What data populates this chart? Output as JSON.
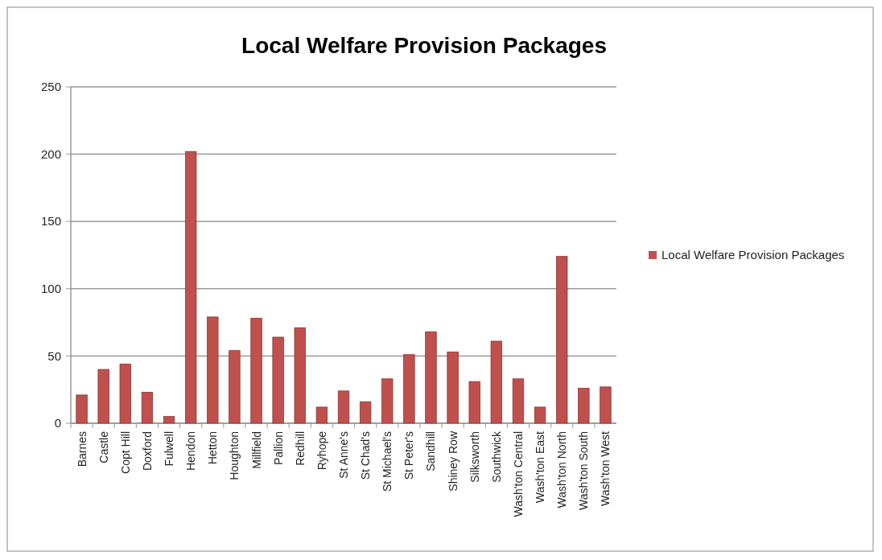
{
  "chart_data": {
    "type": "bar",
    "title": "Local Welfare Provision Packages",
    "categories": [
      "Barnes",
      "Castle",
      "Copt Hill",
      "Doxford",
      "Fulwell",
      "Hendon",
      "Hetton",
      "Houghton",
      "Millfield",
      "Pallion",
      "Redhill",
      "Ryhope",
      "St Anne's",
      "St Chad's",
      "St Michael's",
      "St Peter's",
      "Sandhill",
      "Shiney Row",
      "Silksworth",
      "Southwick",
      "Wash'ton Central",
      "Wash'ton East",
      "Wash'ton North",
      "Wash'ton South",
      "Wash'ton West"
    ],
    "series": [
      {
        "name": "Local Welfare Provision Packages",
        "color": "#c0504d",
        "values": [
          21,
          40,
          44,
          23,
          5,
          202,
          79,
          54,
          78,
          64,
          71,
          12,
          24,
          16,
          33,
          51,
          68,
          53,
          31,
          61,
          33,
          12,
          124,
          26,
          27
        ]
      }
    ],
    "ylim": [
      0,
      250
    ],
    "yticks": [
      0,
      50,
      100,
      150,
      200,
      250
    ],
    "grid": "y",
    "legend": "right"
  }
}
